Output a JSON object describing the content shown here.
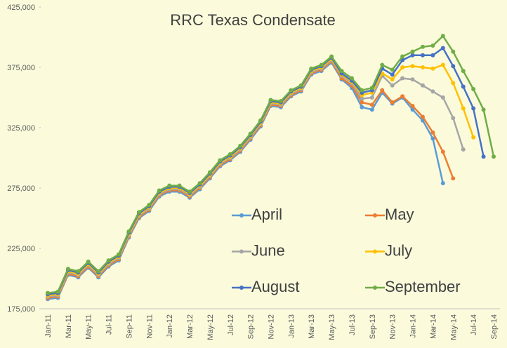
{
  "chart_data": {
    "type": "line",
    "title": "RRC Texas Condensate",
    "categories": [
      "Jan-11",
      null,
      "Mar-11",
      null,
      "May-11",
      null,
      "Jul-11",
      null,
      "Sep-11",
      null,
      "Nov-11",
      null,
      "Jan-12",
      null,
      "Mar-12",
      null,
      "May-12",
      null,
      "Jul-12",
      null,
      "Sep-12",
      null,
      "Nov-12",
      null,
      "Jan-13",
      null,
      "Mar-13",
      null,
      "May-13",
      null,
      "Jul-13",
      null,
      "Sep-13",
      null,
      "Nov-13",
      null,
      "Jan-14",
      null,
      "Mar-14",
      null,
      "May-14",
      null,
      "Jul-14",
      null,
      "Sep-14"
    ],
    "ylim": [
      175000,
      425000
    ],
    "yticks": [
      {
        "value": 175000,
        "label": "175,000"
      },
      {
        "value": 225000,
        "label": "225,000"
      },
      {
        "value": 275000,
        "label": "275,000"
      },
      {
        "value": 325000,
        "label": "325,000"
      },
      {
        "value": 375000,
        "label": "375,000"
      },
      {
        "value": 425000,
        "label": "425,000"
      }
    ],
    "grid": false,
    "series": [
      {
        "name": "April",
        "color": "#5b9bd5",
        "values": [
          183000,
          184000,
          203000,
          201000,
          209000,
          201000,
          210000,
          215000,
          234000,
          250000,
          256000,
          268000,
          272000,
          272000,
          267000,
          274000,
          283000,
          293000,
          298000,
          305000,
          315000,
          326000,
          343000,
          342000,
          351000,
          355000,
          369000,
          372000,
          379000,
          365000,
          358000,
          342000,
          340000,
          354000,
          345000,
          350000,
          340000,
          331000,
          316000,
          279000,
          null,
          null,
          null,
          null,
          null
        ]
      },
      {
        "name": "May",
        "color": "#ed7d31",
        "values": [
          184000,
          185000,
          204000,
          202000,
          210000,
          202000,
          211000,
          216000,
          235000,
          251000,
          257000,
          269000,
          273000,
          273000,
          268000,
          275000,
          284000,
          294000,
          299000,
          306000,
          316000,
          327000,
          344000,
          343000,
          352000,
          356000,
          370000,
          373000,
          380000,
          366000,
          360000,
          346000,
          344000,
          356000,
          346000,
          351000,
          343000,
          334000,
          321000,
          305000,
          283000,
          null,
          null,
          null,
          null
        ]
      },
      {
        "name": "June",
        "color": "#a5a5a5",
        "values": [
          185000,
          186000,
          205000,
          203000,
          211000,
          203000,
          212000,
          217000,
          236000,
          252000,
          258000,
          270000,
          274000,
          274000,
          269000,
          276000,
          285000,
          295000,
          300000,
          307000,
          317000,
          328000,
          345000,
          344000,
          353000,
          357000,
          371000,
          374000,
          381000,
          368000,
          362000,
          349000,
          350000,
          368000,
          360000,
          366000,
          365000,
          360000,
          355000,
          350000,
          333000,
          307000,
          null,
          null,
          null
        ]
      },
      {
        "name": "July",
        "color": "#ffc000",
        "values": [
          186000,
          187000,
          206000,
          204000,
          212000,
          204000,
          213000,
          218000,
          237000,
          253000,
          259000,
          271000,
          275000,
          275000,
          270000,
          277000,
          286000,
          296000,
          301000,
          308000,
          318000,
          329000,
          346000,
          345000,
          354000,
          358000,
          372000,
          375000,
          382000,
          369000,
          363000,
          352000,
          354000,
          370000,
          365000,
          375000,
          376000,
          375000,
          374000,
          377000,
          362000,
          341000,
          317000,
          null,
          null
        ]
      },
      {
        "name": "August",
        "color": "#4472c4",
        "values": [
          187000,
          188000,
          207000,
          205000,
          213000,
          205000,
          214000,
          219000,
          238000,
          254000,
          260000,
          272000,
          276000,
          276000,
          271000,
          278000,
          287000,
          297000,
          302000,
          309000,
          319000,
          330000,
          347000,
          346000,
          355000,
          359000,
          373000,
          376000,
          383000,
          370000,
          364000,
          354000,
          356000,
          374000,
          369000,
          381000,
          385000,
          385000,
          385000,
          391000,
          376000,
          359000,
          341000,
          301000,
          null
        ]
      },
      {
        "name": "September",
        "color": "#70ad47",
        "values": [
          188000,
          189000,
          208000,
          206000,
          214000,
          206000,
          215000,
          220000,
          239000,
          255000,
          261000,
          273000,
          277000,
          277000,
          272000,
          279000,
          288000,
          298000,
          303000,
          310000,
          320000,
          331000,
          348000,
          347000,
          356000,
          360000,
          374000,
          377000,
          384000,
          372000,
          366000,
          356000,
          358000,
          377000,
          373000,
          384000,
          388000,
          392000,
          393000,
          401000,
          388000,
          372000,
          357000,
          340000,
          301000
        ]
      }
    ]
  }
}
